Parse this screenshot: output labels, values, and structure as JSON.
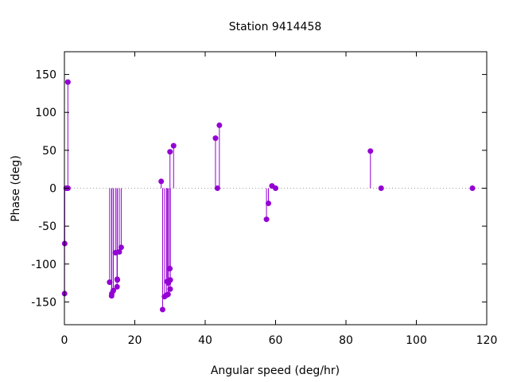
{
  "chart_data": {
    "type": "scatter",
    "style": "impulses-with-points",
    "title": "Station 9414458",
    "xlabel": "Angular speed (deg/hr)",
    "ylabel": "Phase (deg)",
    "xlim": [
      0,
      120
    ],
    "ylim": [
      -180,
      180
    ],
    "xticks": [
      0,
      20,
      40,
      60,
      80,
      100,
      120
    ],
    "yticks": [
      -150,
      -100,
      -50,
      0,
      50,
      100,
      150
    ],
    "zero_line": "dotted",
    "grid": false,
    "legend": "none",
    "colors": {
      "series": "#9400d3",
      "axis": "#000000",
      "zero_line": "#a0a0a0"
    },
    "series": [
      {
        "name": "",
        "points": [
          {
            "x": 0.04,
            "y": -139
          },
          {
            "x": 0.08,
            "y": -73
          },
          {
            "x": 0.5,
            "y": 0
          },
          {
            "x": 0.98,
            "y": 140
          },
          {
            "x": 1.0,
            "y": 0
          },
          {
            "x": 12.85,
            "y": -124
          },
          {
            "x": 13.4,
            "y": -142
          },
          {
            "x": 13.47,
            "y": -139
          },
          {
            "x": 13.9,
            "y": -135
          },
          {
            "x": 14.5,
            "y": -85
          },
          {
            "x": 14.96,
            "y": -130
          },
          {
            "x": 15.0,
            "y": -120
          },
          {
            "x": 15.04,
            "y": -121
          },
          {
            "x": 15.59,
            "y": -84
          },
          {
            "x": 16.14,
            "y": -78
          },
          {
            "x": 27.5,
            "y": 9
          },
          {
            "x": 27.9,
            "y": -160
          },
          {
            "x": 28.44,
            "y": -143
          },
          {
            "x": 28.98,
            "y": -141
          },
          {
            "x": 29.2,
            "y": -123
          },
          {
            "x": 29.46,
            "y": -140
          },
          {
            "x": 29.53,
            "y": -125
          },
          {
            "x": 29.96,
            "y": -106
          },
          {
            "x": 30.0,
            "y": 48
          },
          {
            "x": 30.04,
            "y": -133
          },
          {
            "x": 30.08,
            "y": -121
          },
          {
            "x": 31.02,
            "y": 56
          },
          {
            "x": 42.93,
            "y": 66
          },
          {
            "x": 43.48,
            "y": 0
          },
          {
            "x": 44.03,
            "y": 83
          },
          {
            "x": 57.42,
            "y": -41
          },
          {
            "x": 57.97,
            "y": -20
          },
          {
            "x": 58.98,
            "y": 3
          },
          {
            "x": 60.0,
            "y": 0
          },
          {
            "x": 86.95,
            "y": 49
          },
          {
            "x": 90.0,
            "y": 0
          },
          {
            "x": 115.94,
            "y": 0
          }
        ]
      }
    ]
  }
}
